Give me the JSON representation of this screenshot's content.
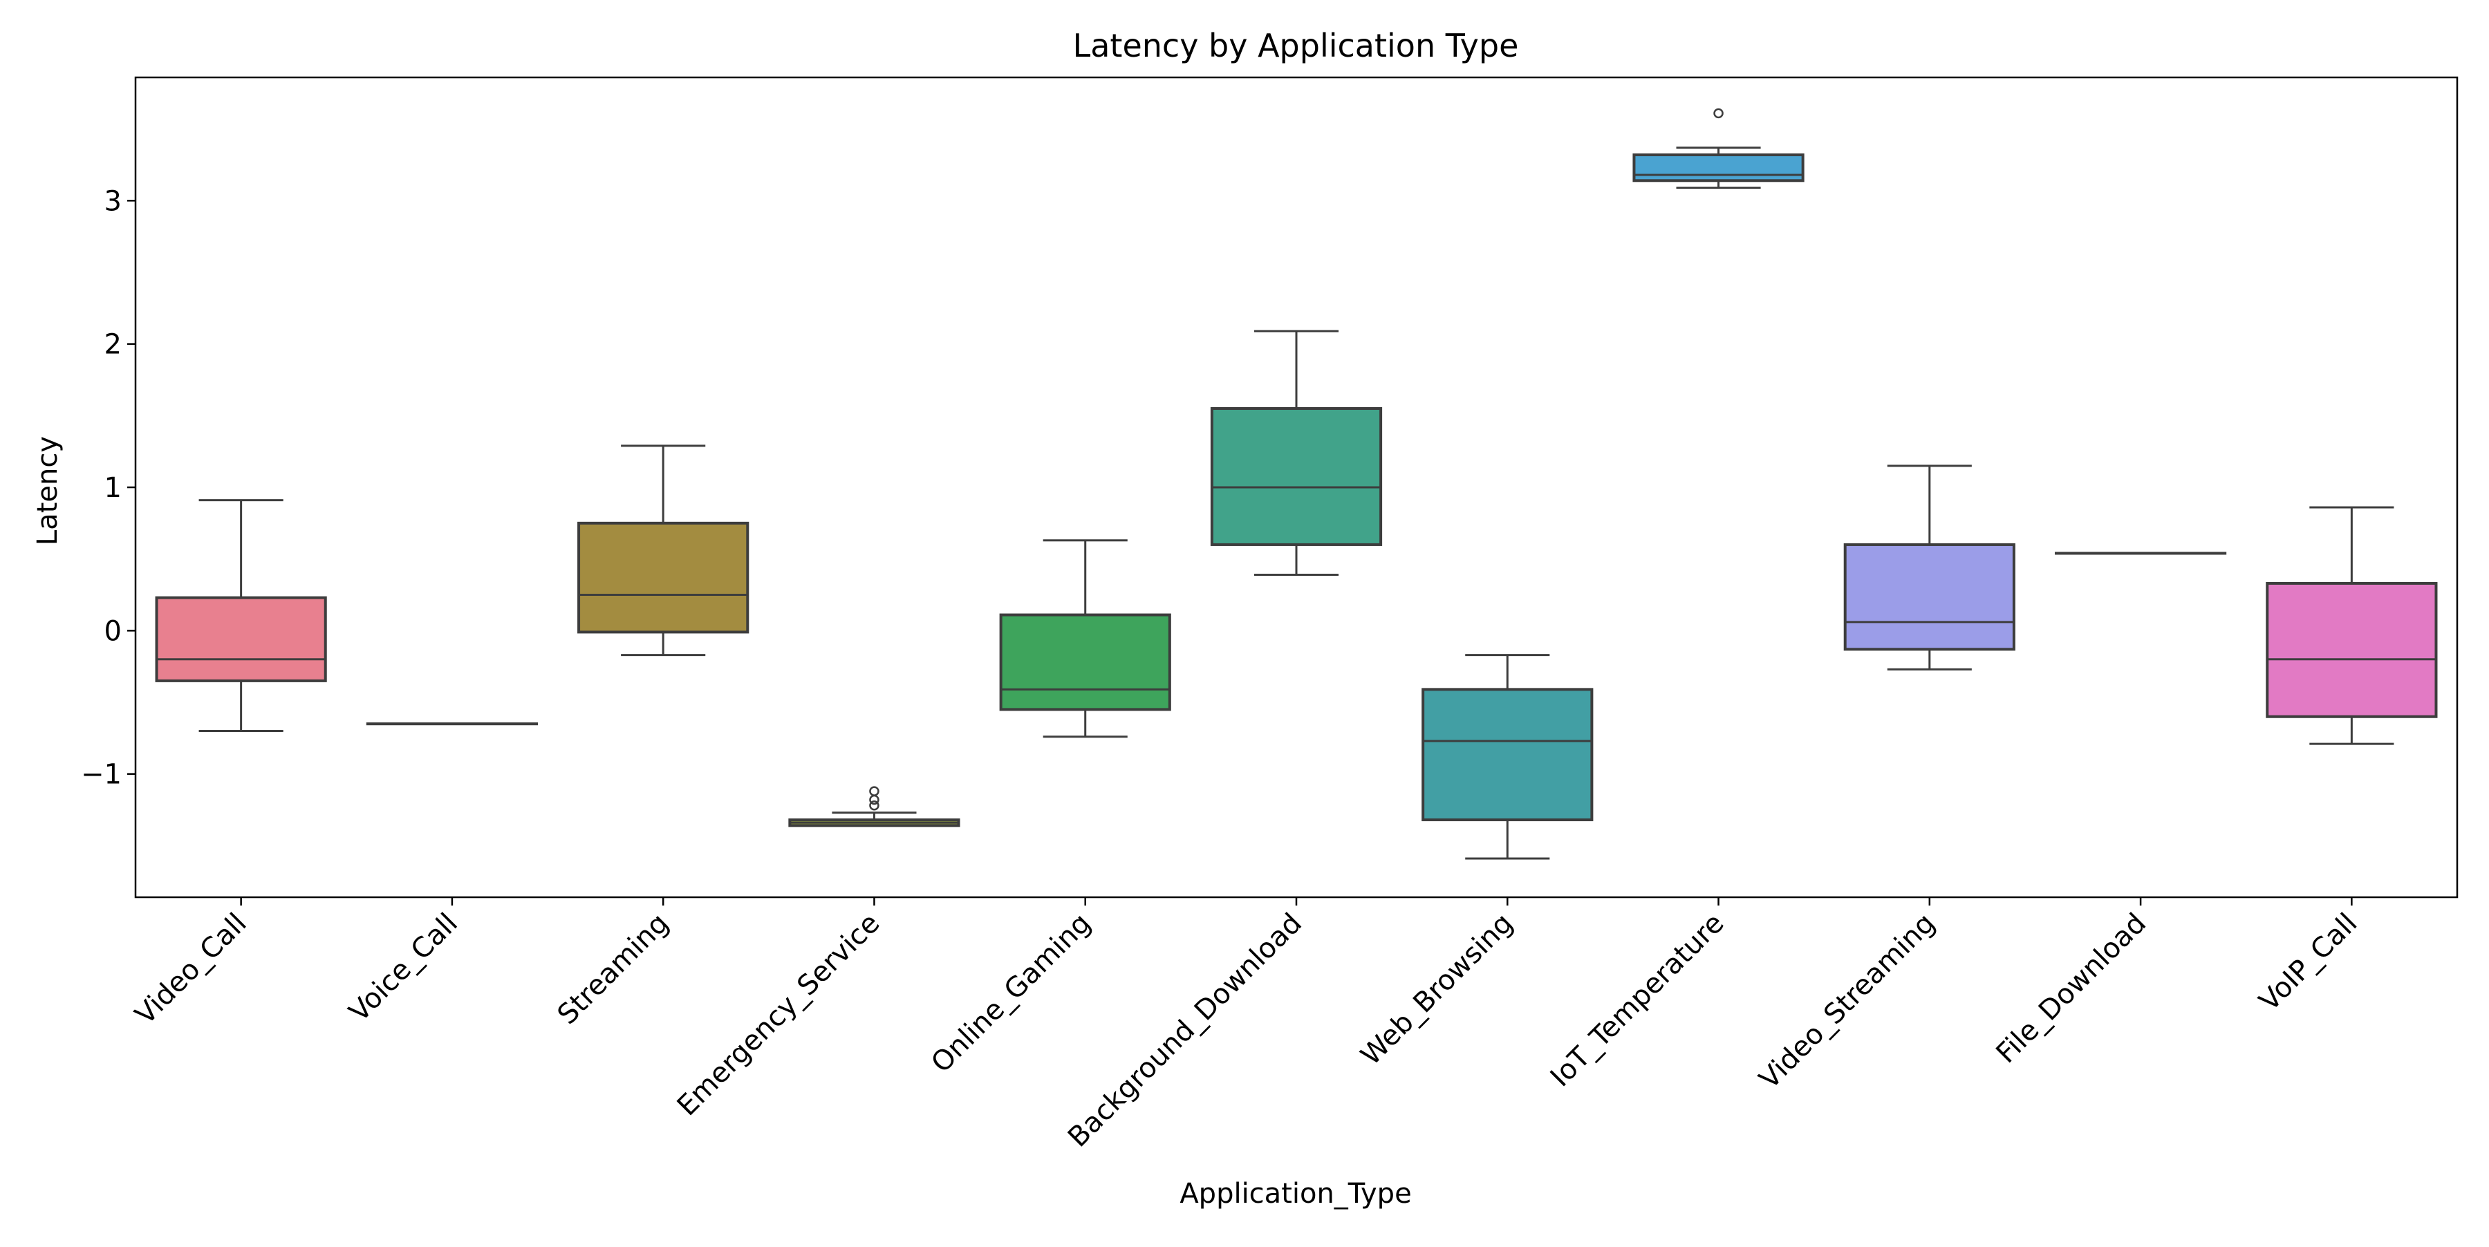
{
  "chart_data": {
    "type": "box",
    "title": "Latency by Application Type",
    "xlabel": "Application_Type",
    "ylabel": "Latency",
    "ylim": [
      -1.86,
      3.86
    ],
    "yticks": [
      -1,
      0,
      1,
      2,
      3
    ],
    "ytick_labels": [
      "−1",
      "0",
      "1",
      "2",
      "3"
    ],
    "grid": false,
    "legend": "none",
    "categories": [
      "Video_Call",
      "Voice_Call",
      "Streaming",
      "Emergency_Service",
      "Online_Gaming",
      "Background_Download",
      "Web_Browsing",
      "IoT_Temperature",
      "Video_Streaming",
      "File_Download",
      "VoIP_Call"
    ],
    "boxes": [
      {
        "category": "Video_Call",
        "whisker_low": -0.7,
        "q1": -0.35,
        "median": -0.2,
        "q3": 0.23,
        "whisker_high": 0.91,
        "outliers": [],
        "color": "#e8808f"
      },
      {
        "category": "Voice_Call",
        "whisker_low": -0.65,
        "q1": -0.65,
        "median": -0.65,
        "q3": -0.65,
        "whisker_high": -0.65,
        "outliers": [],
        "color": "#e88a70"
      },
      {
        "category": "Streaming",
        "whisker_low": -0.17,
        "q1": -0.01,
        "median": 0.25,
        "q3": 0.75,
        "whisker_high": 1.29,
        "outliers": [],
        "color": "#a38c40"
      },
      {
        "category": "Emergency_Service",
        "whisker_low": -1.36,
        "q1": -1.36,
        "median": -1.34,
        "q3": -1.32,
        "whisker_high": -1.27,
        "outliers": [
          -1.22,
          -1.18,
          -1.12
        ],
        "color": "#8e9a3e"
      },
      {
        "category": "Online_Gaming",
        "whisker_low": -0.74,
        "q1": -0.55,
        "median": -0.41,
        "q3": 0.11,
        "whisker_high": 0.63,
        "outliers": [],
        "color": "#3ea45c"
      },
      {
        "category": "Background_Download",
        "whisker_low": 0.39,
        "q1": 0.6,
        "median": 1.0,
        "q3": 1.55,
        "whisker_high": 2.09,
        "outliers": [],
        "color": "#41a38a"
      },
      {
        "category": "Web_Browsing",
        "whisker_low": -1.59,
        "q1": -1.32,
        "median": -0.77,
        "q3": -0.41,
        "whisker_high": -0.17,
        "outliers": [],
        "color": "#429fa4"
      },
      {
        "category": "IoT_Temperature",
        "whisker_low": 3.09,
        "q1": 3.14,
        "median": 3.18,
        "q3": 3.32,
        "whisker_high": 3.37,
        "outliers": [
          3.61
        ],
        "color": "#4aa3d1"
      },
      {
        "category": "Video_Streaming",
        "whisker_low": -0.27,
        "q1": -0.13,
        "median": 0.06,
        "q3": 0.6,
        "whisker_high": 1.15,
        "outliers": [],
        "color": "#9b9de8"
      },
      {
        "category": "File_Download",
        "whisker_low": 0.54,
        "q1": 0.54,
        "median": 0.54,
        "q3": 0.54,
        "whisker_high": 0.54,
        "outliers": [],
        "color": "#c68ae8"
      },
      {
        "category": "VoIP_Call",
        "whisker_low": -0.79,
        "q1": -0.6,
        "median": -0.2,
        "q3": 0.33,
        "whisker_high": 0.86,
        "outliers": [],
        "color": "#e27ac4"
      }
    ]
  }
}
